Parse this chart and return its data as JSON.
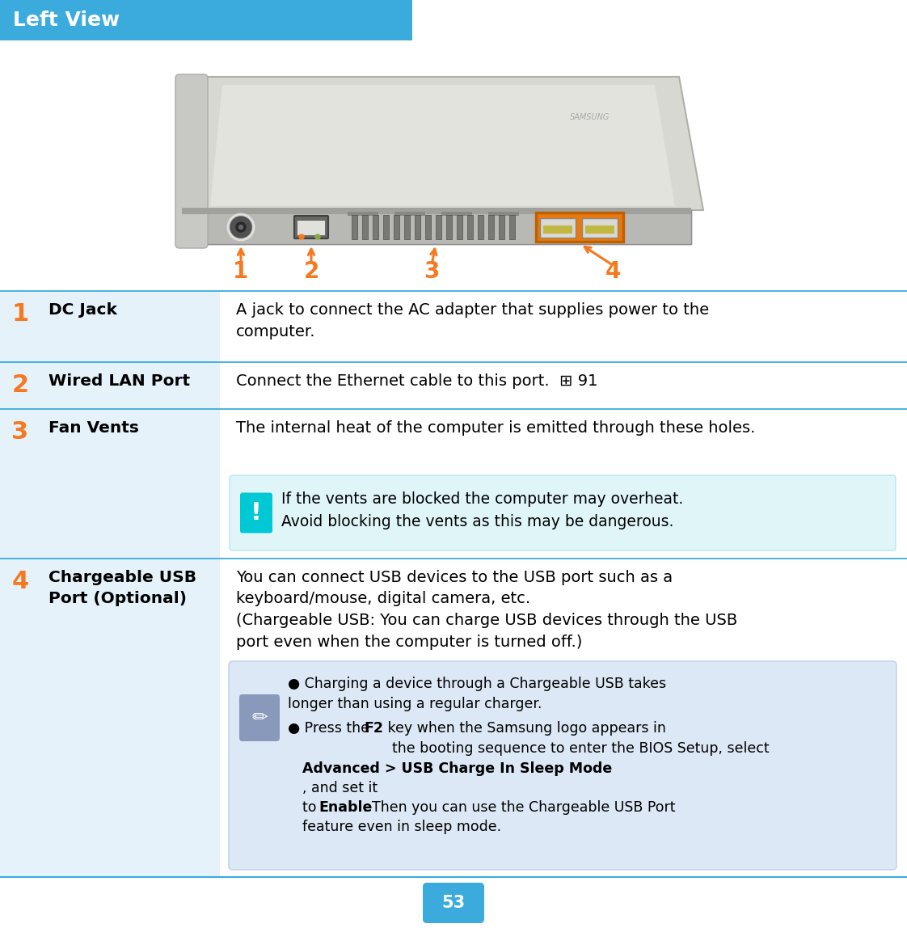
{
  "title": "Left View",
  "title_bg": "#3aabdc",
  "title_text_color": "#ffffff",
  "page_bg": "#ffffff",
  "orange": "#f47920",
  "blue_header": "#3aabdc",
  "teal_warn": "#00c8d4",
  "warn_bg": "#e0f5f8",
  "note_bg": "#dce8f5",
  "row_label_bg": "#e5f2fa",
  "divider_color": "#3aabdc",
  "number_color": "#f47920",
  "rows": [
    {
      "num": "1",
      "label": "DC Jack",
      "desc": "A jack to connect the AC adapter that supplies power to the\ncomputer.",
      "warn": null,
      "has_note": false
    },
    {
      "num": "2",
      "label": "Wired LAN Port",
      "desc": "Connect the Ethernet cable to this port.  ⊞ 91",
      "warn": null,
      "has_note": false
    },
    {
      "num": "3",
      "label": "Fan Vents",
      "desc": "The internal heat of the computer is emitted through these holes.",
      "warn": "If the vents are blocked the computer may overheat.\nAvoid blocking the vents as this may be dangerous.",
      "has_note": false
    },
    {
      "num": "4",
      "label": "Chargeable USB\nPort (Optional)",
      "desc": "You can connect USB devices to the USB port such as a\nkeyboard/mouse, digital camera, etc.\n(Chargeable USB: You can charge USB devices through the USB\nport even when the computer is turned off.)",
      "warn": null,
      "has_note": true
    }
  ],
  "note_bullet1": "Charging a device through a Chargeable USB takes\nlonger than using a regular charger.",
  "note_bullet2_pre": "● Press the ",
  "note_bullet2_bold1": "F2",
  "note_bullet2_mid": " key when the Samsung logo appears in\n  the booting sequence to enter the BIOS Setup, select",
  "note_bullet2_bold2": "Advanced > USB Charge In Sleep Mode",
  "note_bullet2_end1": ", and set it\nto ",
  "note_bullet2_bold3": "Enable",
  "note_bullet2_end2": ". Then you can use the Chargeable USB Port\nfeature even in sleep mode.",
  "page_number": "53"
}
